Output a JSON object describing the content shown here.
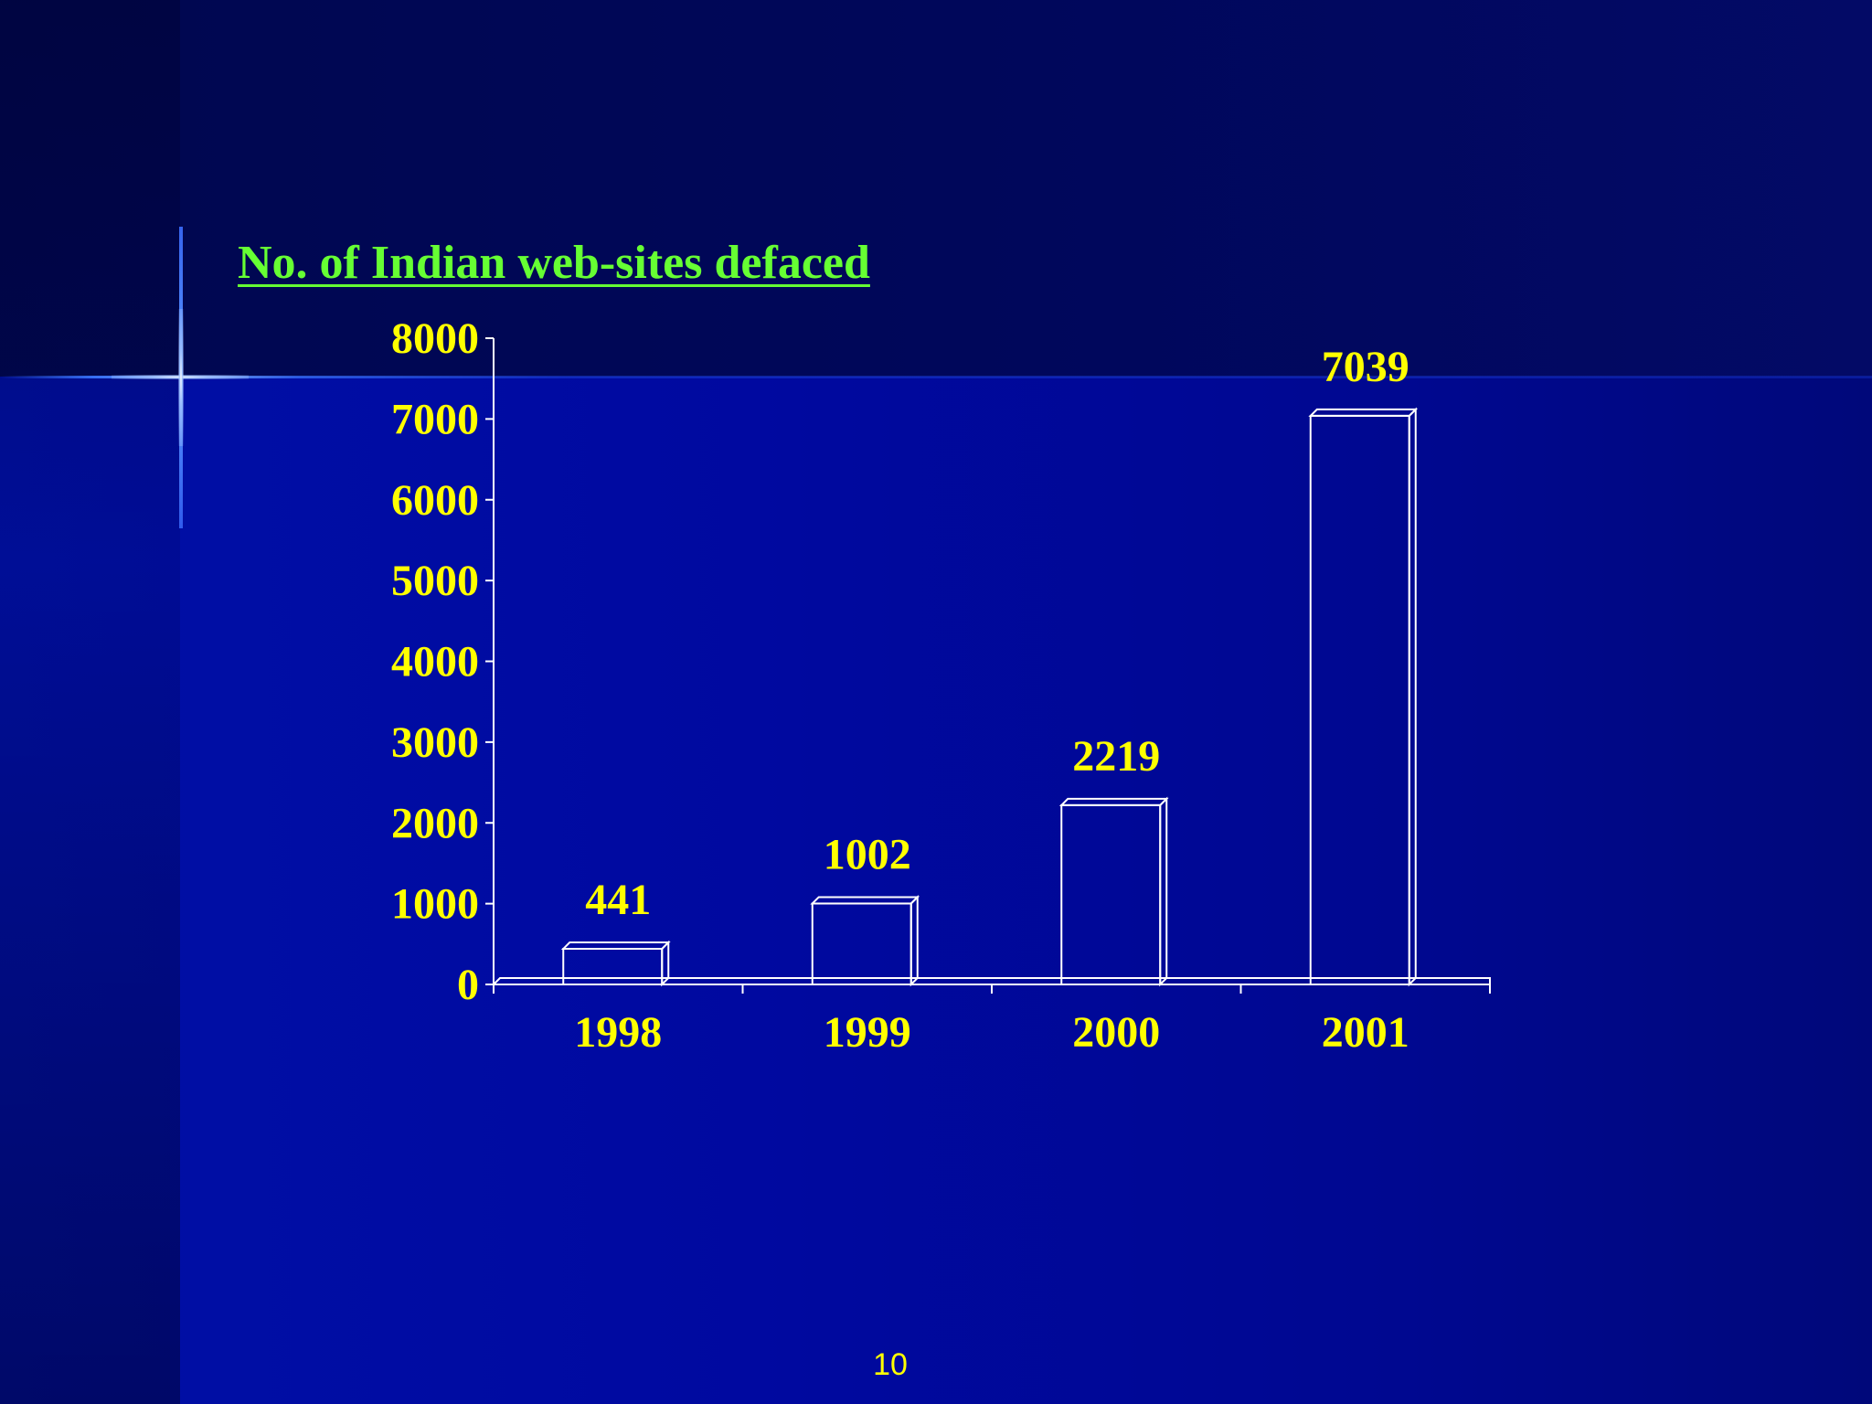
{
  "slide": {
    "page_number": "10"
  },
  "colors": {
    "title": "#66ff33",
    "labels": "#ffff00",
    "bars": "#ffffff",
    "background": "#000a9e"
  },
  "chart_data": {
    "type": "bar",
    "title": "No. of Indian web-sites defaced",
    "xlabel": "",
    "ylabel": "",
    "categories": [
      "1998",
      "1999",
      "2000",
      "2001"
    ],
    "series": [
      {
        "values": [
          441,
          1002,
          2219,
          7039
        ]
      }
    ],
    "data_labels": [
      "441",
      "1002",
      "2219",
      "7039"
    ],
    "yticks": [
      "0",
      "1000",
      "2000",
      "3000",
      "4000",
      "5000",
      "6000",
      "7000",
      "8000"
    ],
    "ylim": [
      0,
      8000
    ],
    "grid": false,
    "legend": "none",
    "style": "3d-outline"
  }
}
